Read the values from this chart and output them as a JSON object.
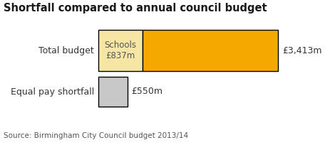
{
  "title": "Shortfall compared to annual council budget",
  "source": "Source: Birmingham City Council budget 2013/14",
  "categories": [
    "Total budget",
    "Equal pay shortfall"
  ],
  "total_budget_value": 3413,
  "schools_value": 837,
  "shortfall_value": 550,
  "bar_color_light_yellow": "#F5E6A3",
  "bar_color_orange": "#F5A800",
  "bar_color_gray": "#C8C8C8",
  "background_color": "#FFFFFF",
  "title_fontsize": 10.5,
  "label_fontsize": 9,
  "source_fontsize": 7.5,
  "annotation_fontsize": 8.5,
  "schools_label": "Schools\n£837m",
  "total_label": "£3,413m",
  "shortfall_label": "£550m"
}
